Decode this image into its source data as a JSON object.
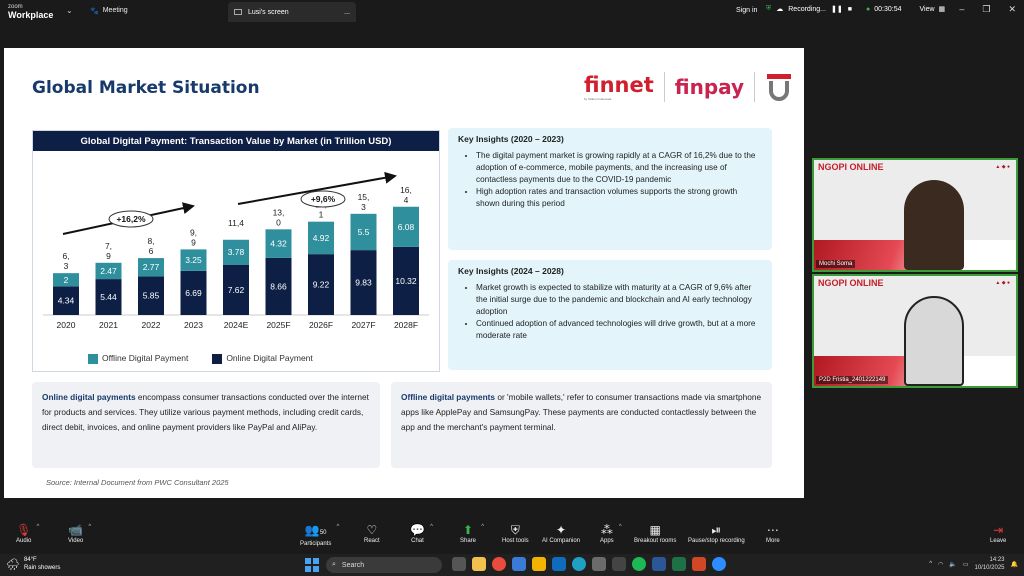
{
  "app": {
    "brand_top": "zoom",
    "brand_bottom": "Workplace",
    "meeting_label": "Meeting",
    "tab_title": "Lusi's screen",
    "tab_menu": "...",
    "signin": "Sign in",
    "recording": "Recording...",
    "timer": "00:30:54",
    "view": "View"
  },
  "slide": {
    "title": "Global Market Situation",
    "logo_finnet": "finnet",
    "logo_finnet_tagline": "by Telkom Indonesia",
    "logo_finpay": "finpay",
    "source": "Source: Internal Document from PWC Consultant 2025",
    "online_desc_bold": "Online digital payments",
    "online_desc_rest": " encompass consumer transactions conducted over the internet for products and services. They utilize various payment methods, including credit cards, direct debit, invoices, and online payment providers like PayPal and AliPay.",
    "offline_desc_bold": "Offline digital payments",
    "offline_desc_rest": " or 'mobile wallets,' refer to consumer transactions made via smartphone apps like ApplePay and SamsungPay. These payments are conducted contactlessly between the app and the merchant's payment terminal.",
    "insight1": {
      "title": "Key Insights (2020 – 2023)",
      "items": [
        "The digital payment market is growing rapidly at a CAGR of 16,2% due to the adoption of e-commerce, mobile payments, and the increasing use of contactless payments due to the COVID-19 pandemic",
        "High adoption rates and transaction volumes supports the strong growth shown during this period"
      ]
    },
    "insight2": {
      "title": "Key Insights (2024 – 2028)",
      "items": [
        "Market growth is expected to stabilize with maturity at a CAGR of 9,6% after the initial surge due to the pandemic and blockchain and AI early technology adoption",
        "Continued adoption of advanced technologies will drive growth, but at a more moderate rate"
      ]
    }
  },
  "chart_data": {
    "type": "bar",
    "stacked": true,
    "title": "Global Digital Payment: Transaction Value by Market (in Trillion USD)",
    "categories": [
      "2020",
      "2021",
      "2022",
      "2023",
      "2024E",
      "2025F",
      "2026F",
      "2027F",
      "2028F"
    ],
    "series": [
      {
        "name": "Online Digital Payment",
        "color": "#0e1f45",
        "values": [
          4.34,
          5.44,
          5.85,
          6.69,
          7.62,
          8.66,
          9.22,
          9.83,
          10.32
        ],
        "labels": [
          "4.34",
          "5.44",
          "5.85",
          "6.69",
          "7.62",
          "8.66",
          "9.22",
          "9.83",
          "10.32"
        ]
      },
      {
        "name": "Offline Digital Payment",
        "color": "#2f8f9d",
        "values": [
          2,
          2.47,
          2.77,
          3.25,
          3.78,
          4.32,
          4.92,
          5.5,
          6.08
        ],
        "labels": [
          "2",
          "2.47",
          "2.77",
          "3.25",
          "3.78",
          "4.32",
          "4.92",
          "5.5",
          "6.08"
        ]
      }
    ],
    "totals_line1": [
      "6,",
      "7,",
      "8,",
      "9,",
      "11,4",
      "13,",
      "14,",
      "15,",
      "16,"
    ],
    "totals_line2": [
      "3",
      "9",
      "6",
      "9",
      "",
      "0",
      "1",
      "3",
      "4"
    ],
    "annotations": [
      "+16,2%",
      "+9,6%"
    ],
    "ylim": [
      0,
      17
    ]
  },
  "participants": [
    {
      "name": "Mochi Soma",
      "banner": "NGOPI ONLINE"
    },
    {
      "name": "P2D Fristia_2401222149",
      "banner": "NGOPI ONLINE"
    }
  ],
  "toolbar": {
    "audio": "Audio",
    "video": "Video",
    "participants": "Participants",
    "participants_count": "50",
    "react": "React",
    "chat": "Chat",
    "share": "Share",
    "host_tools": "Host tools",
    "ai_companion": "AI Companion",
    "apps": "Apps",
    "breakout": "Breakout rooms",
    "pause_rec": "Pause/stop recording",
    "more": "More",
    "leave": "Leave"
  },
  "taskbar": {
    "temp": "84°F",
    "weather": "Rain showers",
    "search": "Search",
    "time": "14:23",
    "date": "10/10/2025"
  }
}
